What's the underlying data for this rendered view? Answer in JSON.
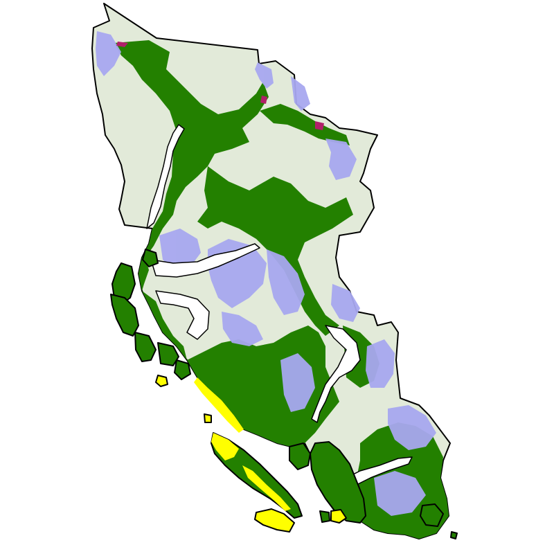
{
  "map": {
    "colors": {
      "background": "#ffffff",
      "upland_light": "#e2ead9",
      "lowland_green": "#238000",
      "alpine_lavender": "#a8a8f0",
      "coastal_yellow": "#ffff00",
      "peak_magenta": "#b0206a",
      "border": "#000000"
    },
    "zones": [
      {
        "id": "upland",
        "color_key": "upland_light"
      },
      {
        "id": "lowland",
        "color_key": "lowland_green"
      },
      {
        "id": "alpine",
        "color_key": "alpine_lavender"
      },
      {
        "id": "coastal",
        "color_key": "coastal_yellow"
      },
      {
        "id": "peak",
        "color_key": "peak_magenta"
      }
    ]
  }
}
